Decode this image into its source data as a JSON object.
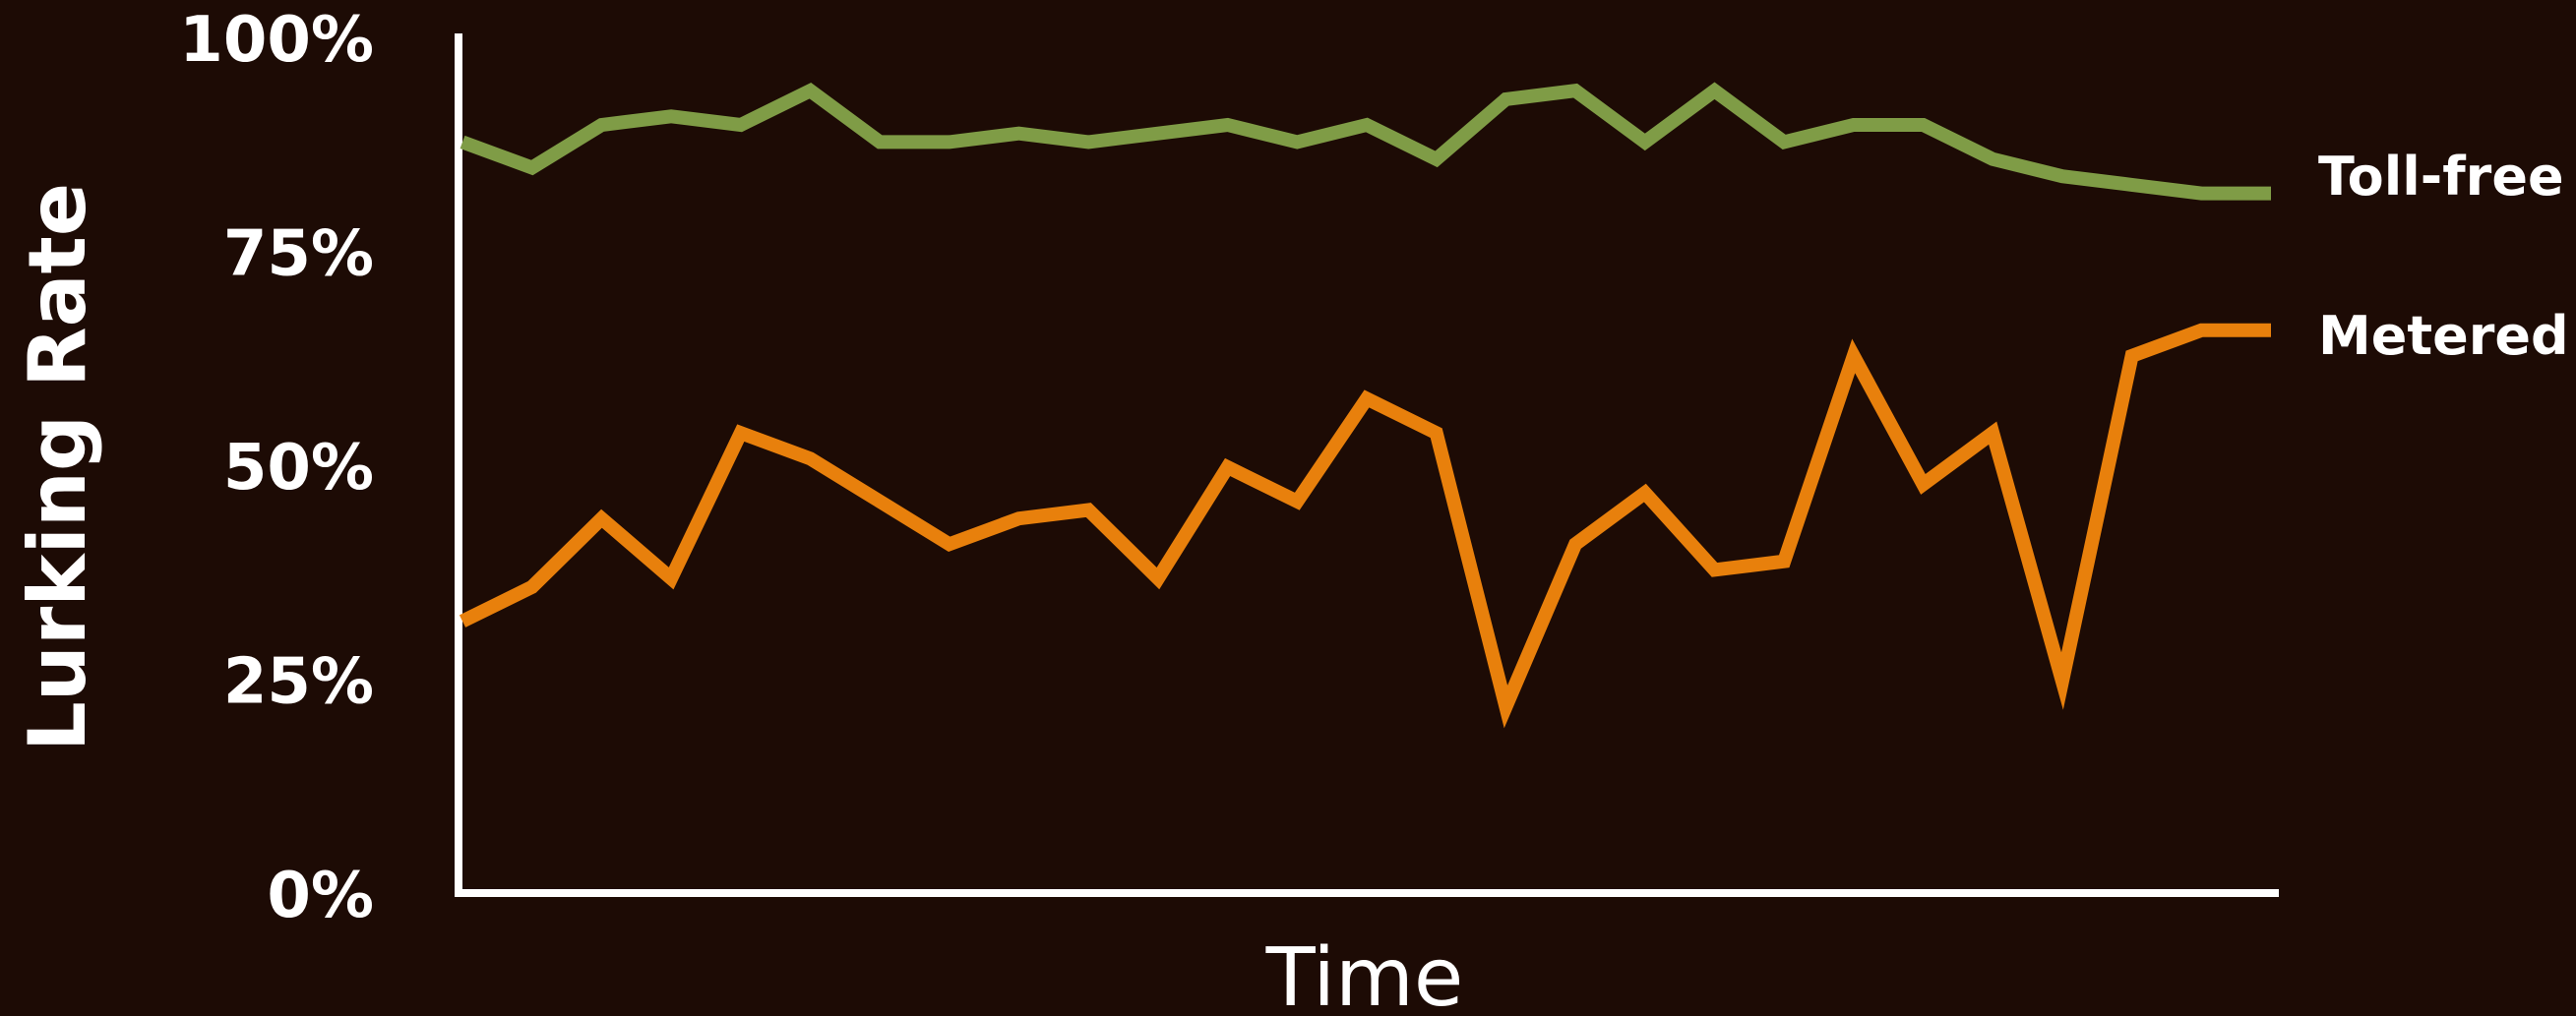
{
  "chart_data": {
    "type": "line",
    "title": "",
    "xlabel": "Time",
    "ylabel": "Lurking Rate",
    "ylim": [
      0,
      100
    ],
    "y_ticks": [
      "0%",
      "25%",
      "50%",
      "75%",
      "100%"
    ],
    "y_tick_values": [
      0,
      25,
      50,
      75,
      100
    ],
    "x": [
      1,
      2,
      3,
      4,
      5,
      6,
      7,
      8,
      9,
      10,
      11,
      12,
      13,
      14,
      15,
      16,
      17,
      18,
      19,
      20,
      21,
      22,
      23,
      24,
      25,
      26,
      27
    ],
    "xlim": [
      1,
      27
    ],
    "grid": false,
    "legend": "right, inline at line ends",
    "series": [
      {
        "name": "Toll-free",
        "color": "#7f9c46",
        "values": [
          88,
          85,
          90,
          91,
          90,
          94,
          88,
          88,
          89,
          88,
          89,
          90,
          88,
          90,
          86,
          93,
          94,
          88,
          94,
          88,
          90,
          90,
          86,
          84,
          83,
          82,
          82
        ]
      },
      {
        "name": "Metered",
        "color": "#e8800c",
        "values": [
          32,
          36,
          44,
          37,
          54,
          51,
          46,
          41,
          44,
          45,
          37,
          50,
          46,
          58,
          54,
          22,
          41,
          47,
          38,
          39,
          63,
          48,
          54,
          25,
          63,
          66,
          66
        ]
      }
    ]
  }
}
